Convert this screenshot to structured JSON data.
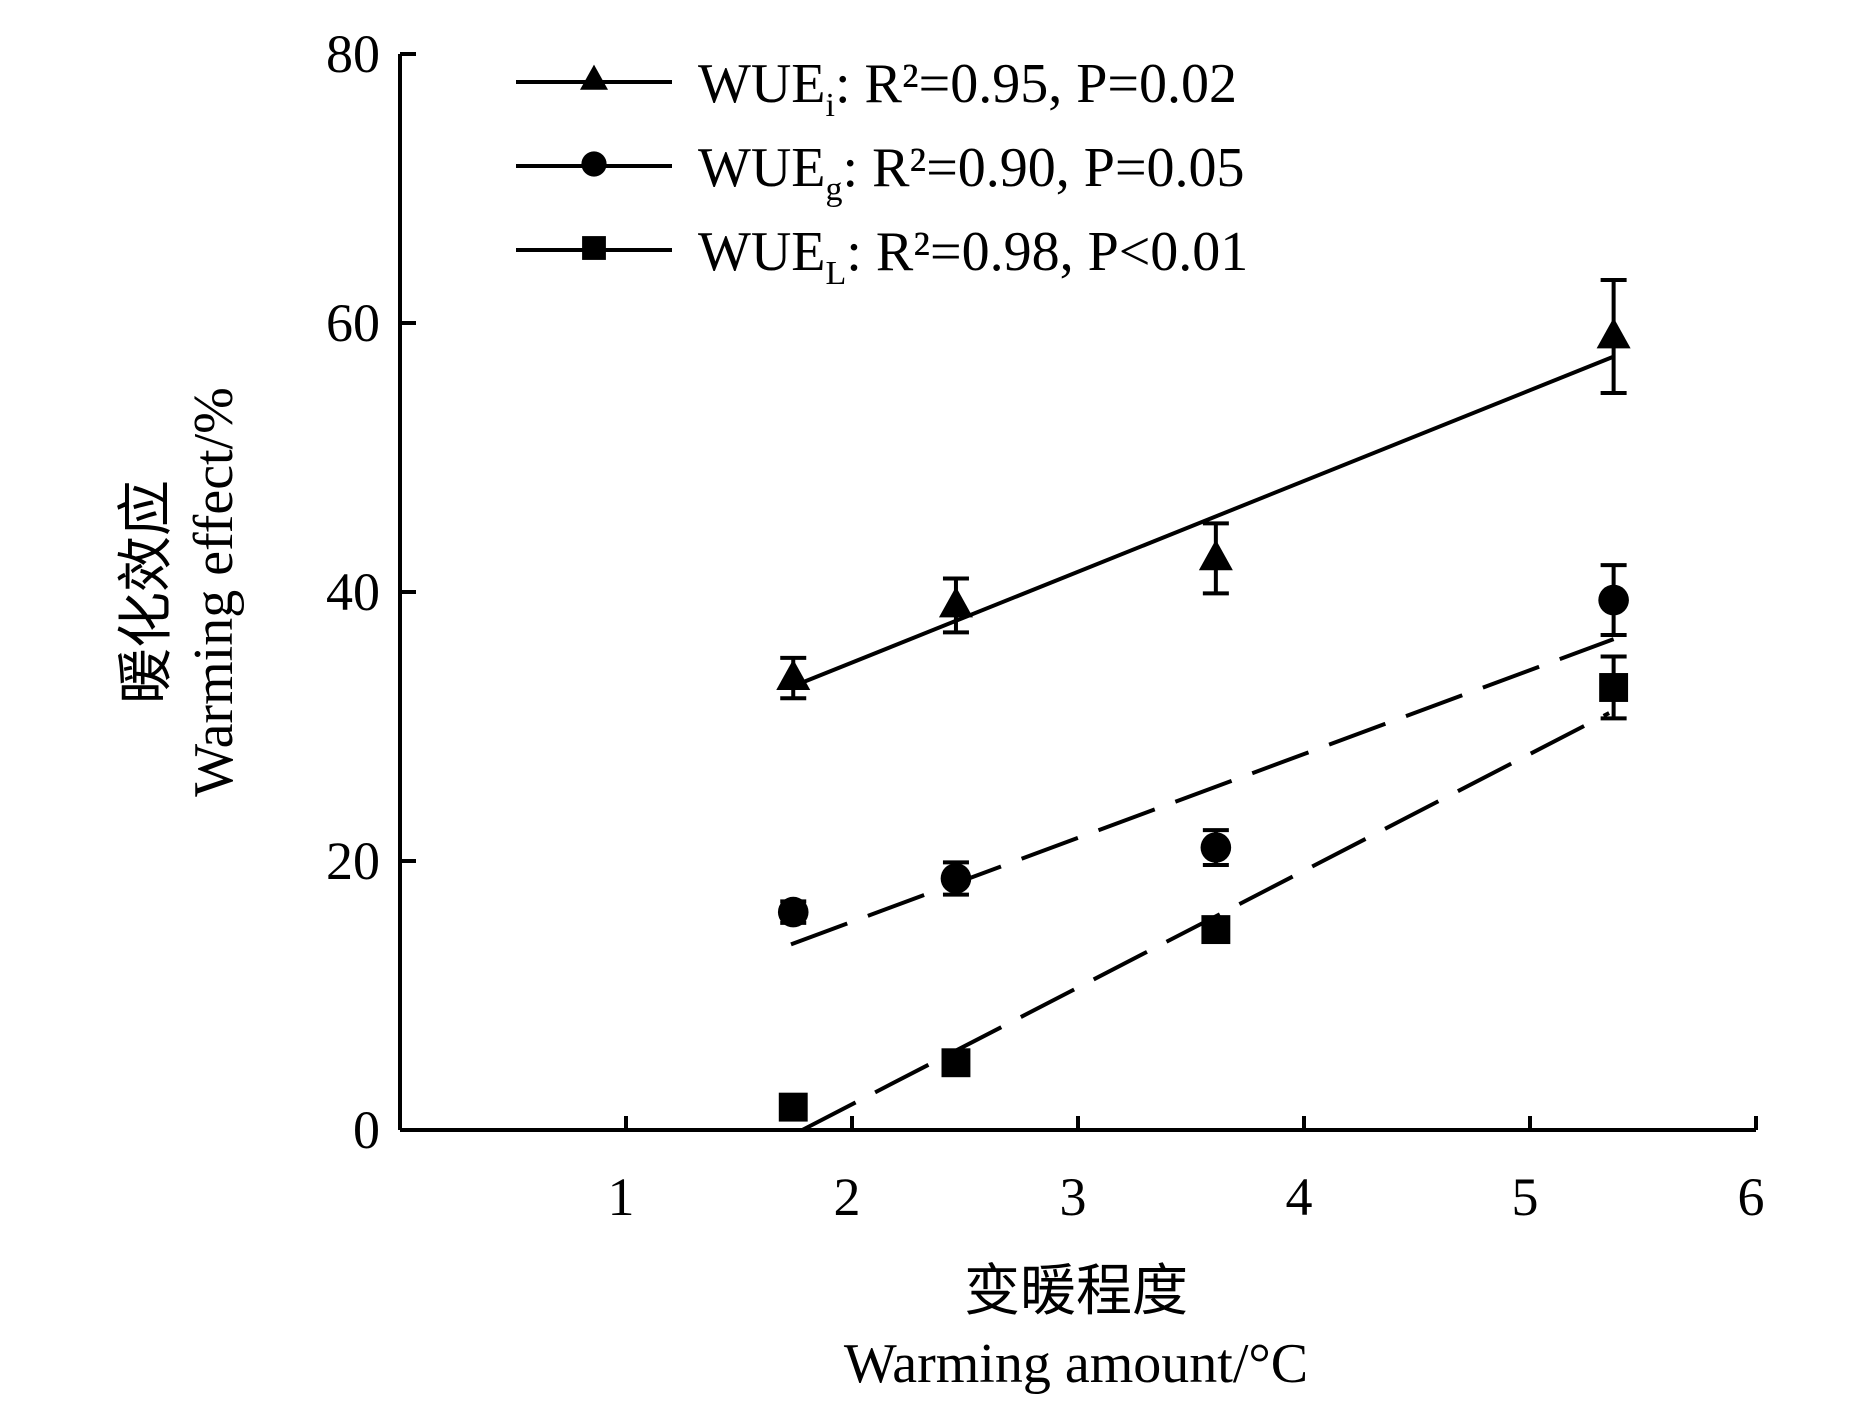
{
  "chart_data": {
    "type": "scatter",
    "xlabel_cn": "变暖程度",
    "xlabel": "Warming amount/°C",
    "ylabel_cn": "暖化效应",
    "ylabel": "Warming effect/%",
    "xlim": [
      0,
      6
    ],
    "ylim": [
      0,
      80
    ],
    "xticks": [
      "1",
      "2",
      "3",
      "4",
      "5",
      "6"
    ],
    "yticks": [
      "0",
      "20",
      "40",
      "60",
      "80"
    ],
    "grid": false,
    "legend_position": "top-left",
    "x": [
      1.74,
      2.46,
      3.61,
      5.37
    ],
    "series": [
      {
        "name": "WUEi",
        "sub": "i",
        "marker": "triangle",
        "line": "solid",
        "legend_label": ": R²=0.95, P=0.02",
        "r2": "0.95",
        "p": "P=0.02",
        "values": [
          33.6,
          39.0,
          42.5,
          59.0
        ],
        "errors": [
          1.5,
          2.0,
          2.6,
          4.2
        ],
        "fit": [
          [
            1.74,
            33.0
          ],
          [
            5.37,
            57.5
          ]
        ]
      },
      {
        "name": "WUEg",
        "sub": "g",
        "marker": "circle",
        "line": "dashed",
        "legend_label": ": R²=0.90, P=0.05",
        "r2": "0.90",
        "p": "P=0.05",
        "values": [
          16.2,
          18.7,
          21.0,
          39.4
        ],
        "errors": [
          0.8,
          1.2,
          1.3,
          2.6
        ],
        "fit": [
          [
            1.73,
            13.8
          ],
          [
            5.37,
            36.5
          ]
        ]
      },
      {
        "name": "WUEL",
        "sub": "L",
        "marker": "square",
        "line": "dashed",
        "legend_label": ": R²=0.98, P<0.01",
        "r2": "0.98",
        "p": "P<0.01",
        "values": [
          1.7,
          5.0,
          14.9,
          32.9
        ],
        "errors": [
          0.3,
          0.4,
          0.5,
          2.3
        ],
        "fit": [
          [
            1.78,
            0.0
          ],
          [
            5.35,
            31.0
          ]
        ]
      }
    ]
  }
}
